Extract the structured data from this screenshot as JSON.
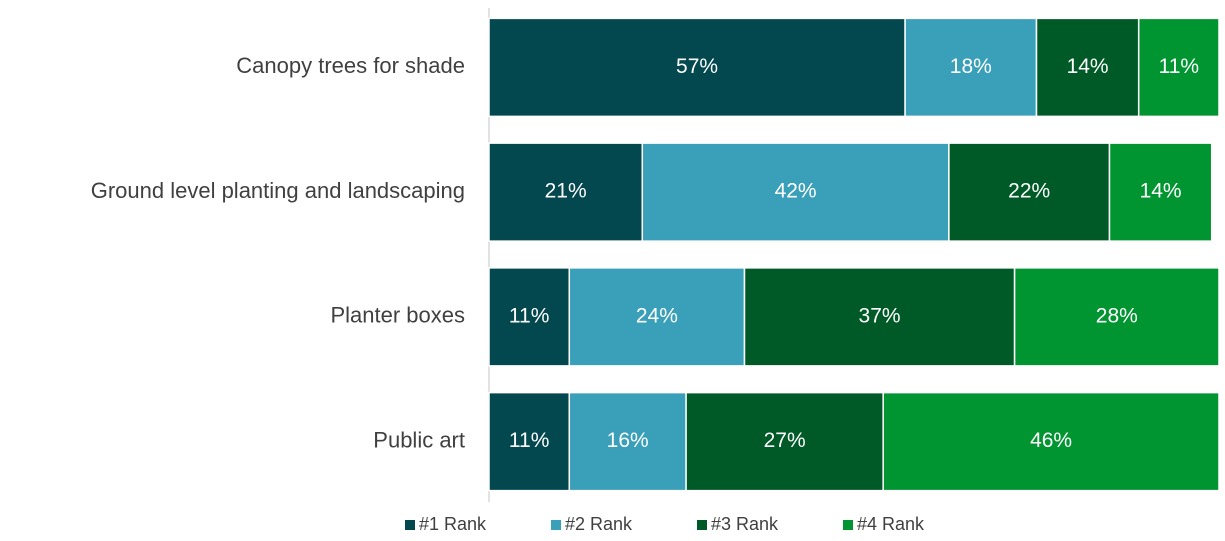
{
  "chart_data": {
    "type": "stacked-bar-horizontal",
    "categories": [
      "Canopy trees for shade",
      "Ground level planting and landscaping",
      "Planter boxes",
      "Public art"
    ],
    "series": [
      {
        "name": "#1 Rank",
        "color": "#03474f",
        "values": [
          57,
          21,
          11,
          11
        ],
        "value_labels": [
          "57%",
          "21%",
          "11%",
          "11%"
        ]
      },
      {
        "name": "#2 Rank",
        "color": "#3a9fb8",
        "values": [
          18,
          42,
          24,
          16
        ],
        "value_labels": [
          "18%",
          "42%",
          "24%",
          "16%"
        ]
      },
      {
        "name": "#3 Rank",
        "color": "#005a27",
        "values": [
          14,
          22,
          37,
          27
        ],
        "value_labels": [
          "14%",
          "22%",
          "37%",
          "27%"
        ]
      },
      {
        "name": "#4 Rank",
        "color": "#009530",
        "values": [
          11,
          14,
          28,
          46
        ],
        "value_labels": [
          "11%",
          "14%",
          "28%",
          "46%"
        ]
      }
    ],
    "xlim": [
      0,
      100
    ],
    "legend": "bottom"
  }
}
